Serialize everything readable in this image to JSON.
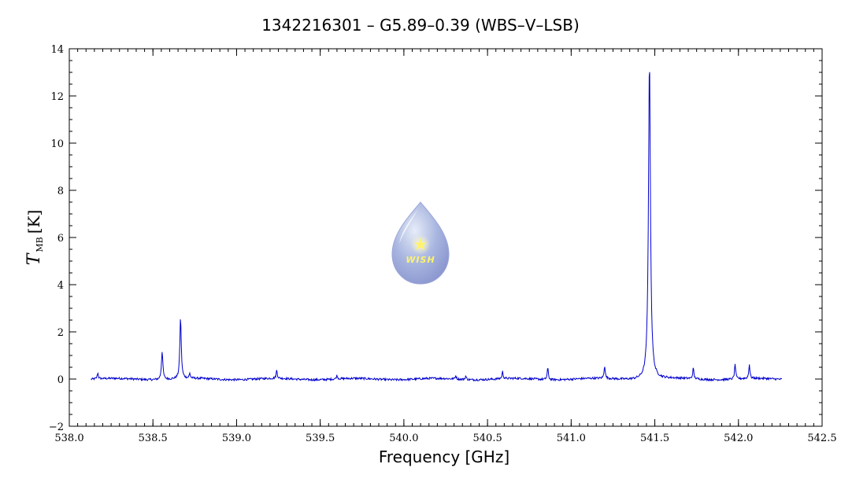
{
  "chart_data": {
    "type": "line",
    "title": "1342216301 – G5.89–0.39 (WBS–V–LSB)",
    "xlabel": "Frequency [GHz]",
    "ylabel": {
      "symbol": "T",
      "subscript": "MB",
      "unit": "[K]"
    },
    "xlim": [
      538.0,
      542.5
    ],
    "ylim": [
      -2,
      14
    ],
    "xticks": [
      538.0,
      538.5,
      539.0,
      539.5,
      540.0,
      540.5,
      541.0,
      541.5,
      542.0,
      542.5
    ],
    "xtick_labels": [
      "538.0",
      "538.5",
      "539.0",
      "539.5",
      "540.0",
      "540.5",
      "541.0",
      "541.5",
      "542.0",
      "542.5"
    ],
    "yticks": [
      -2,
      0,
      2,
      4,
      6,
      8,
      10,
      12,
      14
    ],
    "ytick_labels": [
      "−2",
      "0",
      "2",
      "4",
      "6",
      "8",
      "10",
      "12",
      "14"
    ],
    "grid": false,
    "series": [
      {
        "color": "#0000cc",
        "x_range": [
          538.13,
          542.26
        ],
        "baseline": 0.0,
        "peaks": [
          {
            "x": 538.17,
            "y": 0.25
          },
          {
            "x": 538.555,
            "y": 1.2
          },
          {
            "x": 538.665,
            "y": 2.6
          },
          {
            "x": 538.72,
            "y": 0.2
          },
          {
            "x": 539.24,
            "y": 0.35
          },
          {
            "x": 539.6,
            "y": 0.15
          },
          {
            "x": 540.31,
            "y": 0.15
          },
          {
            "x": 540.37,
            "y": 0.15
          },
          {
            "x": 540.59,
            "y": 0.3
          },
          {
            "x": 540.86,
            "y": 0.5
          },
          {
            "x": 541.2,
            "y": 0.55
          },
          {
            "x": 541.468,
            "y": 13.5
          },
          {
            "x": 541.73,
            "y": 0.45
          },
          {
            "x": 541.98,
            "y": 0.65
          },
          {
            "x": 542.065,
            "y": 0.6
          }
        ]
      }
    ]
  },
  "logo": {
    "text": "WISH",
    "icon": "water-drop-star-icon"
  }
}
